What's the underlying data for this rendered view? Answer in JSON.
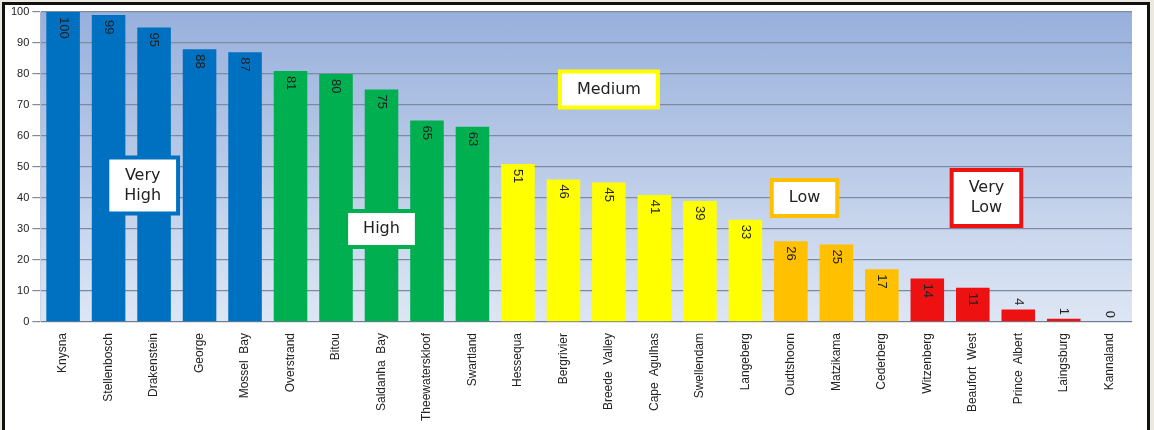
{
  "chart_data": {
    "type": "bar",
    "categories": [
      "Knysna",
      "Stellenbosch",
      "Drakenstein",
      "George",
      "Mossel  Bay",
      "Overstrand",
      "Bitou",
      "Saldanha  Bay",
      "Theewaterskloof",
      "Swartland",
      "Hessequa",
      "Bergrivier",
      "Breede  Valley",
      "Cape  Agulhas",
      "Swellendam",
      "Langeberg",
      "Oudtshoorn",
      "Matzikama",
      "Cederberg",
      "Witzenberg",
      "Beaufort  West",
      "Prince  Albert",
      "Laingsburg",
      "Kannaland"
    ],
    "values": [
      100,
      99,
      95,
      88,
      87,
      81,
      80,
      75,
      65,
      63,
      51,
      46,
      45,
      41,
      39,
      33,
      26,
      25,
      17,
      14,
      11,
      4,
      1,
      0
    ],
    "colors": [
      "#0070c0",
      "#0070c0",
      "#0070c0",
      "#0070c0",
      "#0070c0",
      "#00b050",
      "#00b050",
      "#00b050",
      "#00b050",
      "#00b050",
      "#ffff00",
      "#ffff00",
      "#ffff00",
      "#ffff00",
      "#ffff00",
      "#ffff00",
      "#ffc000",
      "#ffc000",
      "#ffc000",
      "#ee1111",
      "#ee1111",
      "#ee1111",
      "#ee1111",
      "#ee1111"
    ],
    "ylim": [
      0,
      100
    ],
    "yticks": [
      0,
      10,
      20,
      30,
      40,
      50,
      60,
      70,
      80,
      90,
      100
    ],
    "grid": "y",
    "data_labels": true,
    "legend": false,
    "annotations": [
      "Very\nHigh",
      "High",
      "Medium",
      "Low",
      "Very\nLow"
    ]
  }
}
